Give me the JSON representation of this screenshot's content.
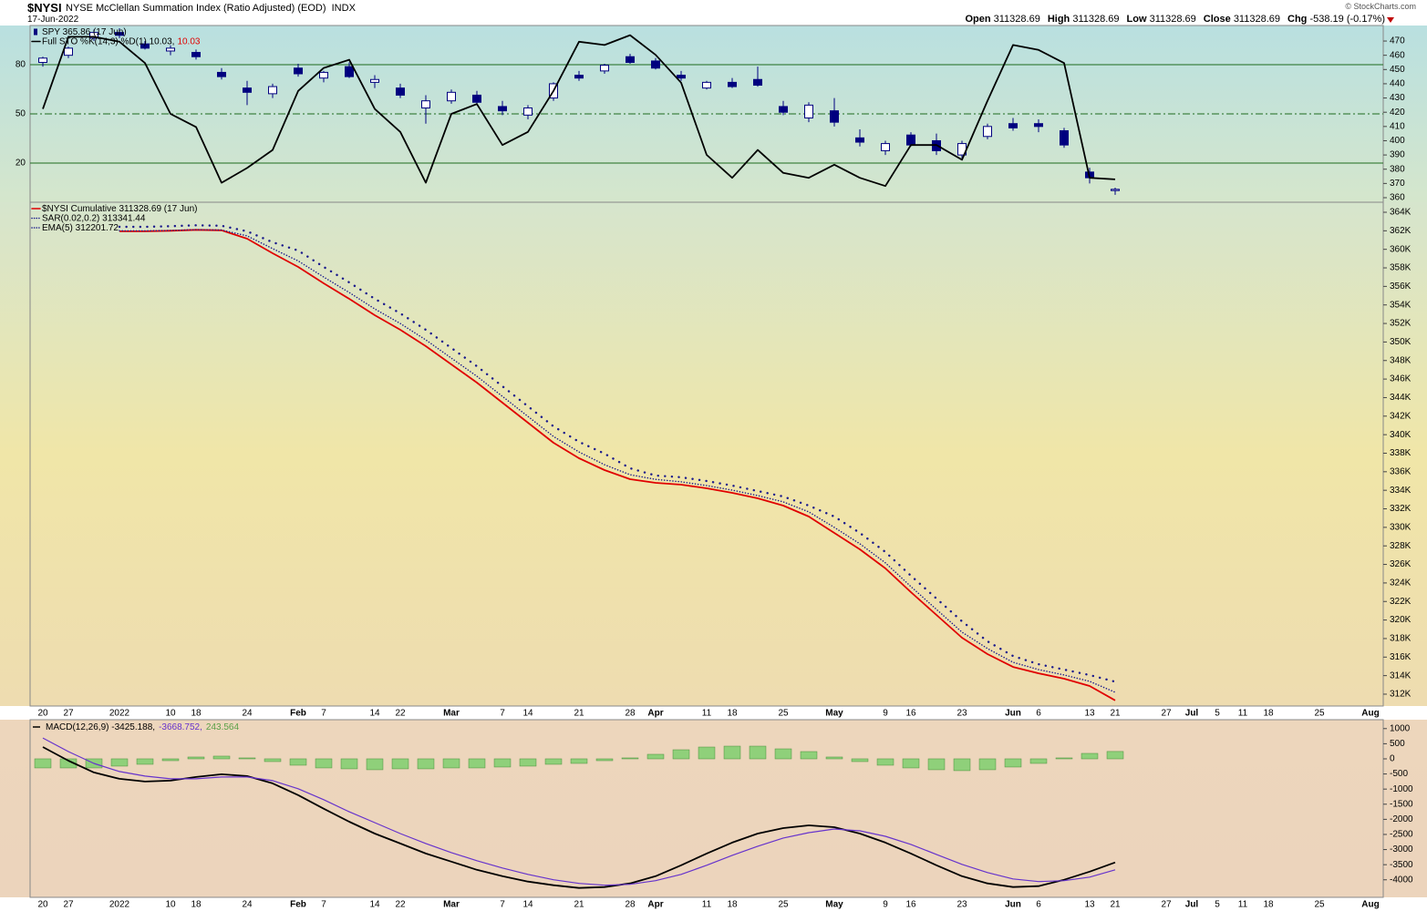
{
  "header": {
    "symbol": "$NYSI",
    "name": "NYSE McClellan Summation Index (Ratio Adjusted) (EOD)",
    "exchange": "INDX",
    "date": "17-Jun-2022",
    "copyright": "© StockCharts.com",
    "quote": [
      {
        "label": "Open",
        "value": 311328.69
      },
      {
        "label": "High",
        "value": 311328.69
      },
      {
        "label": "Low",
        "value": 311328.69
      },
      {
        "label": "Close",
        "value": 311328.69
      },
      {
        "label": "Chg",
        "value": "-538.19 (-0.17%)"
      }
    ]
  },
  "chart_data": [
    {
      "type": "candlestick",
      "categories": [
        "20",
        "27",
        null,
        "2022",
        null,
        "10",
        "18",
        null,
        "24",
        null,
        "Feb",
        "7",
        null,
        "14",
        "22",
        null,
        "Mar",
        null,
        "7",
        "14",
        null,
        "21",
        null,
        "28",
        "Apr",
        null,
        "11",
        "18",
        null,
        "25",
        null,
        "May",
        null,
        "9",
        "16",
        null,
        "23",
        null,
        "Jun",
        "6",
        null,
        "13",
        "21",
        null,
        "27",
        "Jul",
        "5",
        "11",
        "18",
        null,
        "25",
        null,
        "Aug"
      ],
      "ylim": [
        356.8,
        480.9
      ],
      "yticks": [
        360,
        370,
        380,
        390,
        400,
        410,
        420,
        430,
        440,
        450,
        460,
        470
      ],
      "y2lim": [
        -3.9,
        103.9
      ],
      "y2ticks": [
        20,
        50,
        80
      ],
      "y2grid": true,
      "y2grid_dash": [
        false,
        true,
        false
      ],
      "grid_color": "#1d6b1d",
      "series": [
        {
          "name": "SPY 365.86 (17 Jun)",
          "type": "candlestick",
          "color": "#00007f",
          "open": [
            455,
            460,
            472,
            476,
            468,
            463,
            462,
            448,
            437,
            433,
            451,
            444,
            452,
            441,
            437,
            423,
            428,
            432,
            424,
            418,
            430,
            446,
            449,
            459,
            456,
            446,
            437,
            441,
            443,
            424,
            416,
            421,
            402,
            393,
            404,
            400,
            390,
            403,
            412,
            412,
            407,
            378,
            365,
            null,
            null,
            null,
            null,
            null,
            null,
            null,
            null,
            null,
            null
          ],
          "high": [
            459,
            466,
            478,
            479,
            470,
            467,
            464,
            451,
            442,
            440,
            454,
            449,
            455,
            446,
            440,
            432,
            436,
            435,
            428,
            425,
            441,
            449,
            454,
            461,
            458,
            449,
            442,
            444,
            452,
            428,
            427,
            430,
            408,
            400,
            406,
            405,
            400,
            412,
            416,
            415,
            409,
            381,
            367,
            null,
            null,
            null,
            null,
            null,
            null,
            null,
            null,
            null,
            null
          ],
          "low": [
            452,
            458,
            470,
            472,
            464,
            460,
            457,
            443,
            425,
            430,
            445,
            441,
            444,
            437,
            430,
            412,
            426,
            425,
            418,
            415,
            428,
            442,
            447,
            454,
            450,
            442,
            436,
            437,
            438,
            418,
            413,
            410,
            396,
            390,
            396,
            390,
            387,
            401,
            407,
            406,
            395,
            370,
            362,
            null,
            null,
            null,
            null,
            null,
            null,
            null,
            null,
            null,
            null
          ],
          "close": [
            458,
            465,
            476,
            474,
            465,
            465,
            459,
            445,
            434,
            438,
            447,
            448,
            445,
            443,
            432,
            428,
            434,
            427,
            421,
            423,
            440,
            444,
            453,
            455,
            451,
            444,
            441,
            438,
            439,
            420,
            425,
            413,
            399,
            398,
            397,
            393,
            398,
            410,
            409,
            410,
            397,
            374,
            365.86,
            null,
            null,
            null,
            null,
            null,
            null,
            null,
            null,
            null,
            null
          ]
        },
        {
          "name": "Full STO %K(14,3) %D(1) 10.03,",
          "d_label": "10.03",
          "d_color": "#e00000",
          "type": "line",
          "axis": "y2",
          "color": "#000000",
          "line_style": "solid",
          "values": [
            53,
            97,
            97,
            94,
            81,
            50,
            42,
            8,
            17,
            28,
            64,
            78,
            83,
            53,
            39,
            8,
            50,
            56,
            31,
            39,
            64,
            94,
            92,
            98,
            86,
            69,
            25,
            11,
            28,
            14,
            11,
            19,
            11,
            6,
            31,
            31,
            22,
            58,
            92,
            89,
            81,
            11,
            10.03,
            null,
            null,
            null,
            null,
            null,
            null,
            null,
            null,
            null,
            null
          ]
        }
      ]
    },
    {
      "type": "line",
      "categories": [
        "20",
        "27",
        null,
        "2022",
        null,
        "10",
        "18",
        null,
        "24",
        null,
        "Feb",
        "7",
        null,
        "14",
        "22",
        null,
        "Mar",
        null,
        "7",
        "14",
        null,
        "21",
        null,
        "28",
        "Apr",
        null,
        "11",
        "18",
        null,
        "25",
        null,
        "May",
        null,
        "9",
        "16",
        null,
        "23",
        null,
        "Jun",
        "6",
        null,
        "13",
        "21",
        null,
        "27",
        "Jul",
        "5",
        "11",
        "18",
        null,
        "25",
        null,
        "Aug"
      ],
      "ylim": [
        310720,
        365080
      ],
      "yticks": [
        {
          "value": 312000,
          "label": "312K"
        },
        {
          "value": 314000,
          "label": "314K"
        },
        {
          "value": 316000,
          "label": "316K"
        },
        {
          "value": 318000,
          "label": "318K"
        },
        {
          "value": 320000,
          "label": "320K"
        },
        {
          "value": 322000,
          "label": "322K"
        },
        {
          "value": 324000,
          "label": "324K"
        },
        {
          "value": 326000,
          "label": "326K"
        },
        {
          "value": 328000,
          "label": "328K"
        },
        {
          "value": 330000,
          "label": "330K"
        },
        {
          "value": 332000,
          "label": "332K"
        },
        {
          "value": 334000,
          "label": "334K"
        },
        {
          "value": 336000,
          "label": "336K"
        },
        {
          "value": 338000,
          "label": "338K"
        },
        {
          "value": 340000,
          "label": "340K"
        },
        {
          "value": 342000,
          "label": "342K"
        },
        {
          "value": 344000,
          "label": "344K"
        },
        {
          "value": 346000,
          "label": "346K"
        },
        {
          "value": 348000,
          "label": "348K"
        },
        {
          "value": 350000,
          "label": "350K"
        },
        {
          "value": 352000,
          "label": "352K"
        },
        {
          "value": 354000,
          "label": "354K"
        },
        {
          "value": 356000,
          "label": "356K"
        },
        {
          "value": 358000,
          "label": "358K"
        },
        {
          "value": 360000,
          "label": "360K"
        },
        {
          "value": 362000,
          "label": "362K"
        },
        {
          "value": 364000,
          "label": "364K"
        }
      ],
      "series": [
        {
          "name": "$NYSI Cumulative 311328.69 (17 Jun)",
          "type": "line",
          "color": "#e00000",
          "line_style": "solid",
          "values": [
            null,
            null,
            null,
            361940,
            361940,
            362000,
            362100,
            362050,
            361150,
            359580,
            358100,
            356330,
            354660,
            352890,
            351320,
            349550,
            347580,
            345620,
            343450,
            341290,
            339130,
            337460,
            336180,
            335200,
            334800,
            334610,
            334210,
            333720,
            333130,
            332350,
            331170,
            329400,
            327630,
            325570,
            323010,
            320550,
            318090,
            316320,
            314940,
            314250,
            313670,
            312880,
            311328.69,
            null,
            null,
            null,
            null,
            null,
            null,
            null,
            null,
            null,
            null
          ]
        },
        {
          "name": "SAR(0.02,0.2) 313341.44",
          "type": "line",
          "color": "#1a1a8c",
          "line_style": "dots",
          "values": [
            null,
            null,
            null,
            362430,
            362430,
            362490,
            362590,
            362540,
            361940,
            360760,
            359870,
            358100,
            356430,
            354660,
            353090,
            351320,
            349350,
            347390,
            345220,
            343060,
            340900,
            339230,
            337950,
            336380,
            335590,
            335400,
            335000,
            334510,
            333920,
            333330,
            332350,
            331170,
            329400,
            327340,
            324780,
            322320,
            319860,
            317700,
            316120,
            315230,
            314650,
            314060,
            313341.44,
            null,
            null,
            null,
            null,
            null,
            null,
            null,
            null,
            null,
            null
          ]
        },
        {
          "name": "EMA(5) 312201.72",
          "type": "line",
          "color": "#1a1a8c",
          "line_style": "dotted",
          "values": [
            null,
            null,
            null,
            362000,
            361990,
            362030,
            362120,
            362080,
            361450,
            360080,
            358750,
            357010,
            355340,
            353570,
            352000,
            350230,
            348260,
            346300,
            344130,
            341970,
            339810,
            338140,
            336760,
            335680,
            335180,
            334910,
            334510,
            334020,
            333430,
            332750,
            331670,
            330000,
            328230,
            326170,
            323610,
            321150,
            318690,
            316920,
            315440,
            314650,
            314070,
            313380,
            312201.72,
            null,
            null,
            null,
            null,
            null,
            null,
            null,
            null,
            null,
            null
          ]
        }
      ]
    },
    {
      "type": "macd",
      "categories": [
        "20",
        "27",
        null,
        "2022",
        null,
        "10",
        "18",
        null,
        "24",
        null,
        "Feb",
        "7",
        null,
        "14",
        "22",
        null,
        "Mar",
        null,
        "7",
        "14",
        null,
        "21",
        null,
        "28",
        "Apr",
        null,
        "11",
        "18",
        null,
        "25",
        null,
        "May",
        null,
        "9",
        "16",
        null,
        "23",
        null,
        "Jun",
        "6",
        null,
        "13",
        "21",
        null,
        "27",
        "Jul",
        "5",
        "11",
        "18",
        null,
        "25",
        null,
        "Aug"
      ],
      "ylim": [
        -4580,
        1295
      ],
      "yticks": [
        -4000,
        -3500,
        -3000,
        -2500,
        -2000,
        -1500,
        -1000,
        -500,
        0,
        500,
        1000
      ],
      "series": [
        {
          "name": "243.564",
          "type": "bar",
          "color": "#8fd07a",
          "values": [
            -300,
            -300,
            -300,
            -240,
            -180,
            -60,
            60,
            90,
            30,
            -90,
            -210,
            -300,
            -330,
            -360,
            -330,
            -330,
            -300,
            -300,
            -270,
            -240,
            -180,
            -150,
            -60,
            30,
            150,
            300,
            390,
            420,
            420,
            330,
            240,
            60,
            -90,
            -210,
            -300,
            -360,
            -390,
            -360,
            -270,
            -150,
            30,
            180,
            243.564,
            null,
            null,
            null,
            null,
            null,
            null,
            null,
            null,
            null,
            null
          ]
        },
        {
          "name": "MACD(12,26,9) -3425.188,",
          "type": "line",
          "color": "#000000",
          "line_style": "solid",
          "values": [
            390,
            -60,
            -450,
            -660,
            -750,
            -720,
            -600,
            -510,
            -570,
            -810,
            -1200,
            -1650,
            -2080,
            -2470,
            -2800,
            -3130,
            -3400,
            -3670,
            -3880,
            -4060,
            -4180,
            -4270,
            -4240,
            -4120,
            -3880,
            -3520,
            -3130,
            -2770,
            -2470,
            -2290,
            -2200,
            -2260,
            -2470,
            -2770,
            -3130,
            -3520,
            -3880,
            -4120,
            -4240,
            -4210,
            -4000,
            -3730,
            -3425.188,
            null,
            null,
            null,
            null,
            null,
            null,
            null,
            null,
            null,
            null
          ]
        },
        {
          "name": "-3668.752,",
          "type": "line",
          "color": "#6633cc",
          "line_style": "thin",
          "values": [
            690,
            240,
            -150,
            -420,
            -570,
            -660,
            -660,
            -600,
            -600,
            -720,
            -990,
            -1350,
            -1750,
            -2110,
            -2470,
            -2800,
            -3100,
            -3370,
            -3610,
            -3820,
            -4000,
            -4120,
            -4180,
            -4150,
            -4030,
            -3820,
            -3520,
            -3190,
            -2890,
            -2620,
            -2440,
            -2320,
            -2380,
            -2560,
            -2830,
            -3160,
            -3490,
            -3760,
            -3970,
            -4060,
            -4030,
            -3910,
            -3668.752,
            null,
            null,
            null,
            null,
            null,
            null,
            null,
            null,
            null,
            null
          ]
        }
      ]
    }
  ]
}
